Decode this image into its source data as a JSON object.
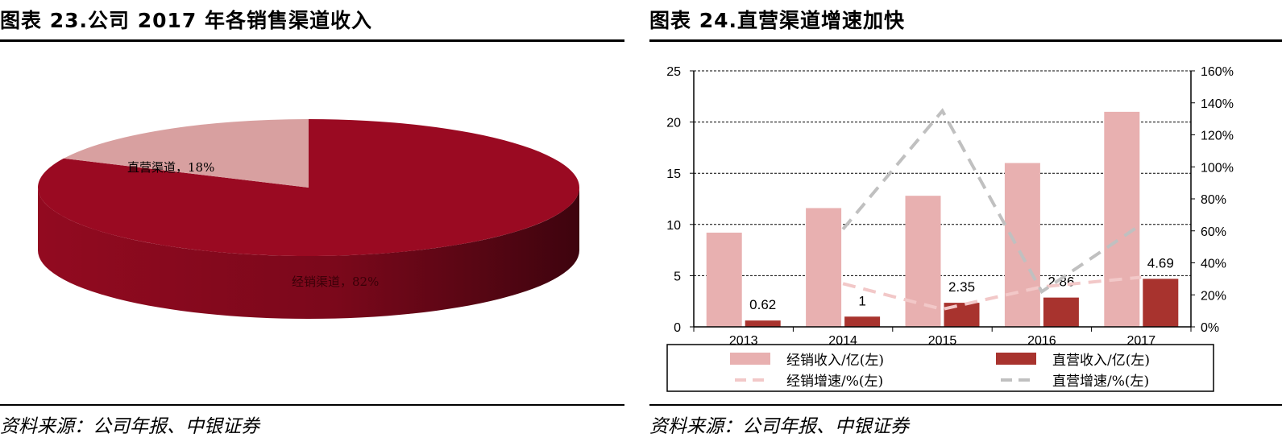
{
  "left": {
    "title": "图表 23.公司 2017 年各销售渠道收入",
    "source": "资料来源：公司年报、中银证券",
    "chart_data": {
      "type": "pie",
      "slices": [
        {
          "label": "经销渠道，82%",
          "value": 82,
          "color": "#9a0a22"
        },
        {
          "label": "直营渠道，18%",
          "value": 18,
          "color": "#d8a0a0"
        }
      ]
    }
  },
  "right": {
    "title": "图表 24.直营渠道增速加快",
    "source": "资料来源：公司年报、中银证券",
    "chart_data": {
      "type": "bar",
      "categories": [
        "2013",
        "2014",
        "2015",
        "2016",
        "2017"
      ],
      "ylim": [
        0,
        25
      ],
      "y_ticks": [
        "0",
        "5",
        "10",
        "15",
        "20",
        "25"
      ],
      "y2lim": [
        0,
        160
      ],
      "y2_ticks": [
        "0%",
        "20%",
        "40%",
        "60%",
        "80%",
        "100%",
        "120%",
        "140%",
        "160%"
      ],
      "grid": true,
      "legend_position": "bottom",
      "series": [
        {
          "name": "经销收入/亿(左)",
          "kind": "bar",
          "color": "#e8b0b0",
          "values": [
            9.2,
            11.6,
            12.8,
            16.0,
            21.0
          ],
          "data_labels": [
            "",
            "",
            "",
            "",
            ""
          ]
        },
        {
          "name": "直营收入/亿(左)",
          "kind": "bar",
          "color": "#a8332e",
          "values": [
            0.62,
            1.0,
            2.35,
            2.86,
            4.69
          ],
          "data_labels": [
            "0.62",
            "1",
            "2.35",
            "2.86",
            "4.69"
          ]
        },
        {
          "name": "经销增速/%(左)",
          "kind": "line",
          "axis": "right",
          "color": "#f2c8c8",
          "values": [
            null,
            27,
            11,
            25,
            31
          ]
        },
        {
          "name": "直营增速/%(左)",
          "kind": "line",
          "axis": "right",
          "color": "#c0c0c0",
          "values": [
            null,
            61,
            135,
            22,
            64
          ]
        }
      ]
    }
  }
}
